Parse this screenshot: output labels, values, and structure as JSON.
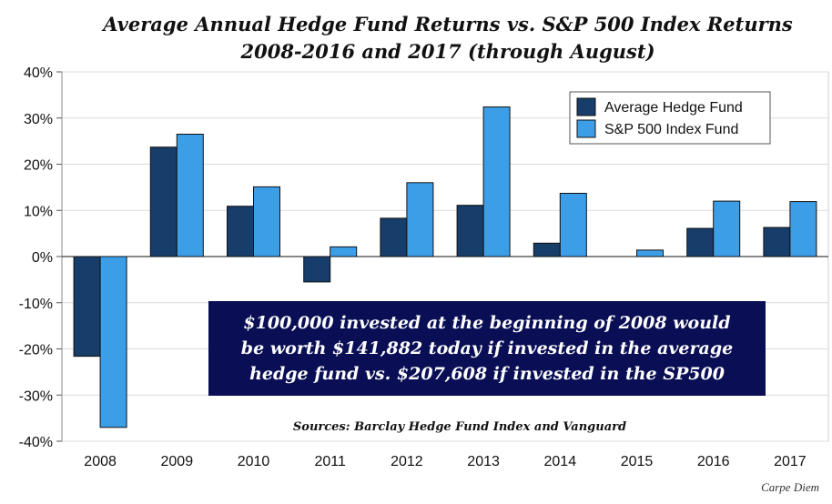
{
  "chart_data": {
    "type": "bar",
    "title": "Average Annual Hedge Fund Returns vs. S&P 500 Index Returns",
    "subtitle": "2008-2016 and 2017 (through August)",
    "categories": [
      "2008",
      "2009",
      "2010",
      "2011",
      "2012",
      "2013",
      "2014",
      "2015",
      "2016",
      "2017"
    ],
    "series": [
      {
        "name": "Average Hedge Fund",
        "color": "#173d6b",
        "values": [
          -21.6,
          23.7,
          10.9,
          -5.5,
          8.3,
          11.1,
          2.9,
          0.0,
          6.1,
          6.3
        ]
      },
      {
        "name": "S&P 500 Index Fund",
        "color": "#3d9ee8",
        "values": [
          -37.0,
          26.5,
          15.1,
          2.1,
          16.0,
          32.4,
          13.7,
          1.4,
          12.0,
          11.9
        ]
      }
    ],
    "ylim": [
      -40,
      40
    ],
    "yticks": [
      40,
      30,
      20,
      10,
      0,
      -10,
      -20,
      -30,
      -40
    ],
    "ytick_labels": [
      "40%",
      "30%",
      "20%",
      "10%",
      "0%",
      "-10%",
      "-20%",
      "-30%",
      "-40%"
    ],
    "grid": true,
    "legend_position": "top-right",
    "annotation_lines": [
      "$100,000 invested at the beginning of 2008 would",
      "be worth $141,882 today if invested in the average",
      "hedge fund vs. $207,608 if invested in the SP500"
    ],
    "sources": "Sources: Barclay Hedge Fund Index and Vanguard",
    "credit": "Carpe Diem"
  }
}
